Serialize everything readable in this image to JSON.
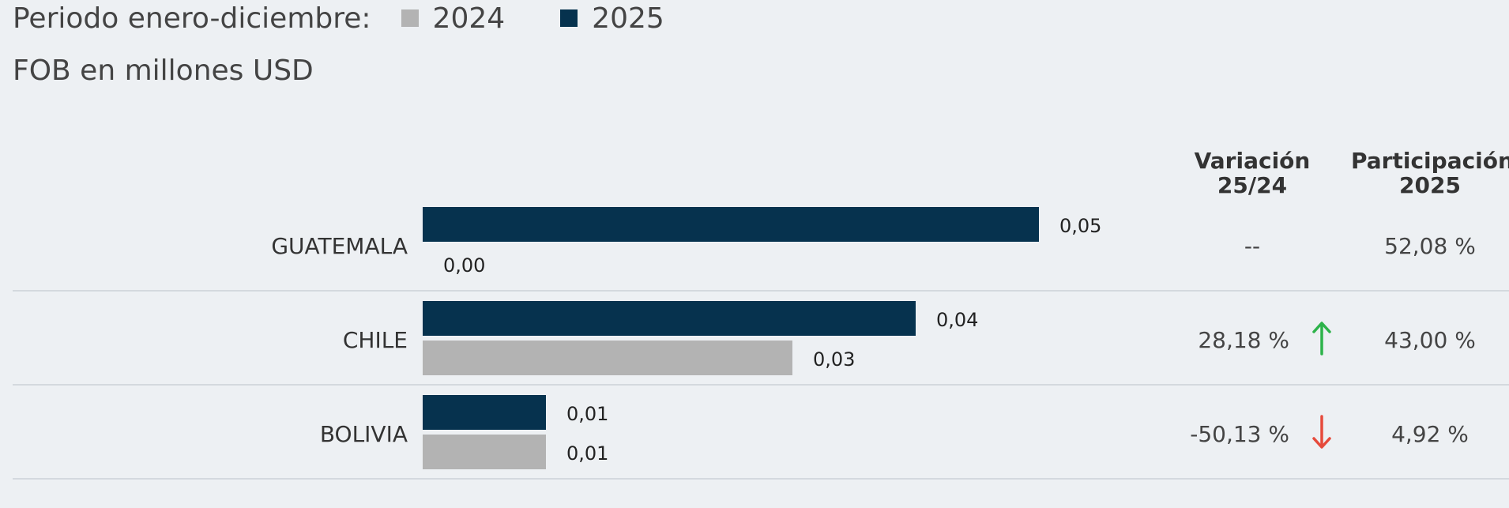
{
  "header": {
    "period_label": "Periodo enero-diciembre:",
    "unit_label": "FOB en millones USD"
  },
  "legend": [
    {
      "label": "2024",
      "color": "#b3b3b3"
    },
    {
      "label": "2025",
      "color": "#06324e"
    }
  ],
  "columns": {
    "variation_line1": "Variación",
    "variation_line2": "25/24",
    "share_line1": "Participación",
    "share_line2": "2025"
  },
  "chart_data": {
    "type": "bar",
    "orientation": "horizontal",
    "categories": [
      "GUATEMALA",
      "CHILE",
      "BOLIVIA"
    ],
    "series": [
      {
        "name": "2025",
        "color": "#06324e",
        "values": [
          0.05,
          0.04,
          0.01
        ],
        "labels": [
          "0,05",
          "0,04",
          "0,01"
        ]
      },
      {
        "name": "2024",
        "color": "#b3b3b3",
        "values": [
          0.0,
          0.03,
          0.01
        ],
        "labels": [
          "0,00",
          "0,03",
          "0,01"
        ]
      }
    ],
    "variation": [
      "--",
      "28,18 %",
      "-50,13 %"
    ],
    "variation_trend": [
      "none",
      "up",
      "down"
    ],
    "share_2025": [
      "52,08 %",
      "43,00 %",
      "4,92 %"
    ],
    "trend_colors": {
      "up": "#2db34a",
      "down": "#e64a3b"
    }
  }
}
